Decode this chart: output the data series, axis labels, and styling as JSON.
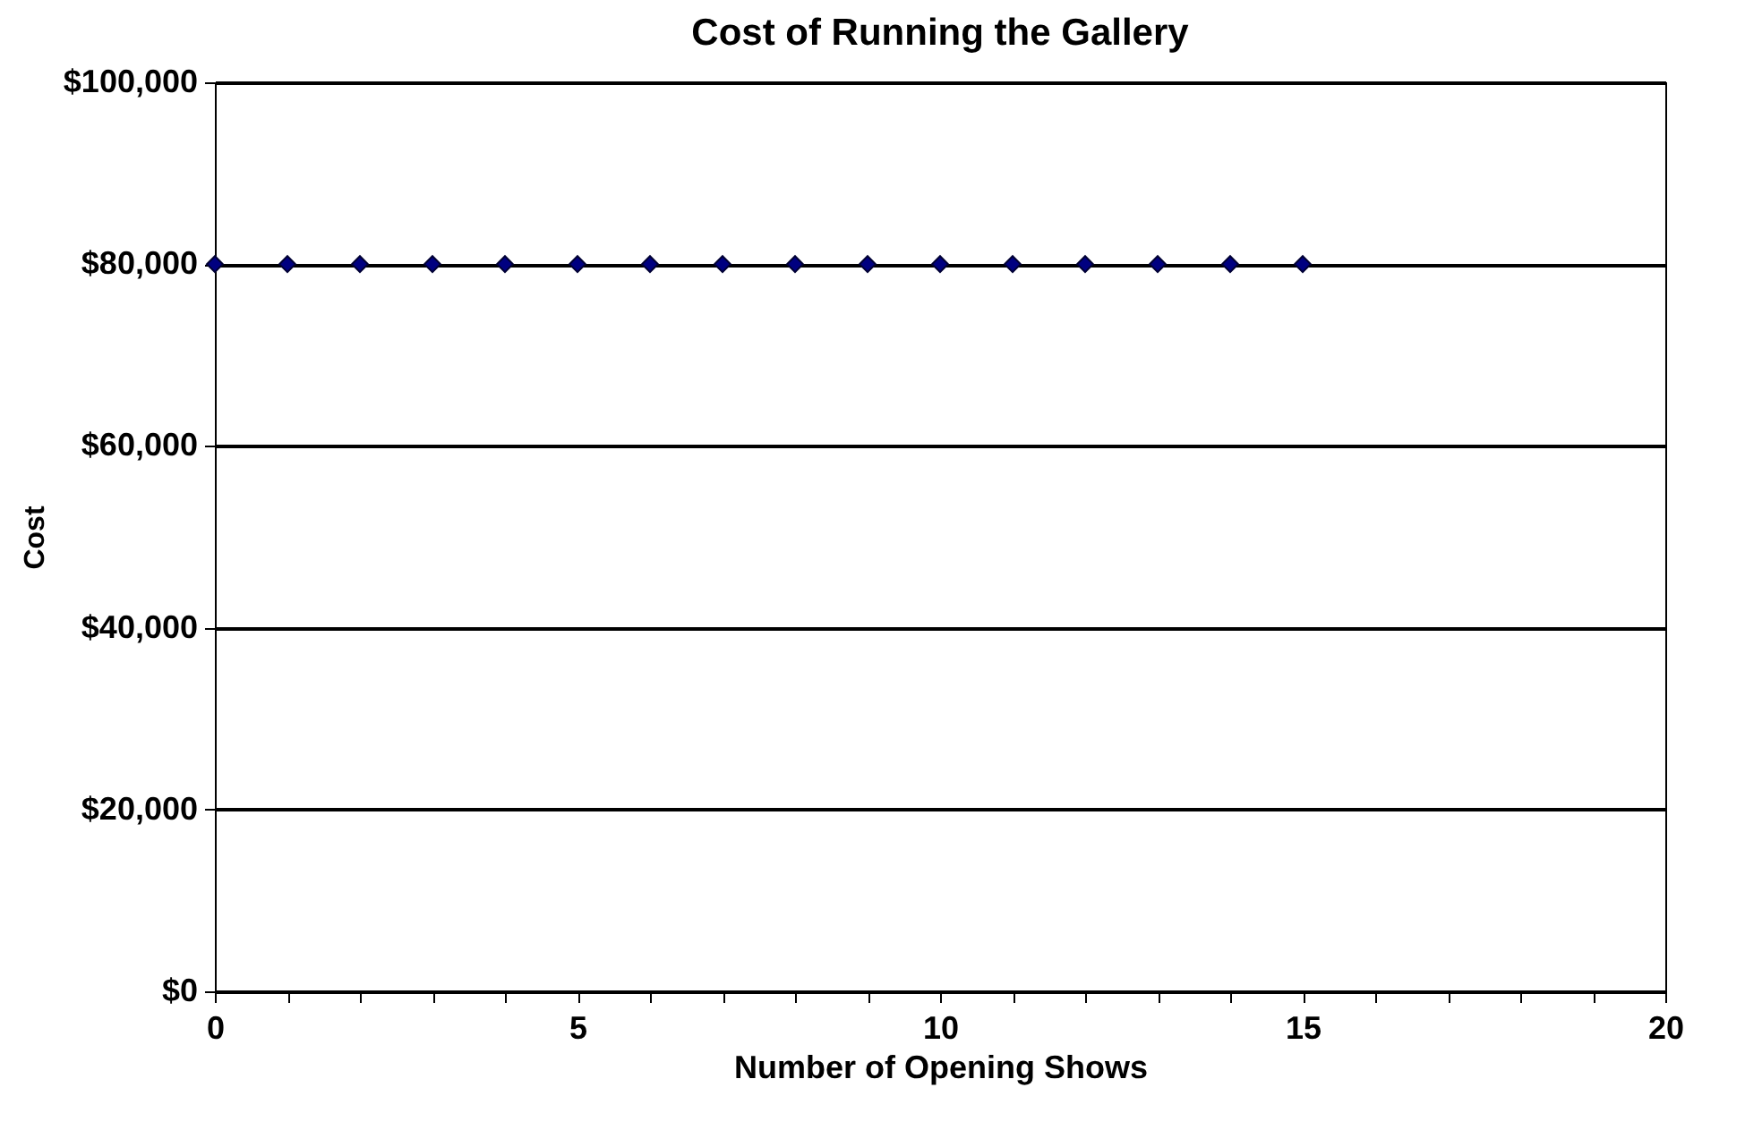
{
  "chart_data": {
    "type": "scatter",
    "title": "Cost of Running the Gallery",
    "xlabel": "Number of Opening Shows",
    "ylabel": "Cost",
    "x": [
      0,
      1,
      2,
      3,
      4,
      5,
      6,
      7,
      8,
      9,
      10,
      11,
      12,
      13,
      14,
      15
    ],
    "series": [
      {
        "color": "#000080",
        "values": [
          80000,
          80000,
          80000,
          80000,
          80000,
          80000,
          80000,
          80000,
          80000,
          80000,
          80000,
          80000,
          80000,
          80000,
          80000,
          80000
        ]
      }
    ],
    "xlim": [
      0,
      20
    ],
    "xticks": [
      0,
      {
        "value": 1,
        "label": null
      },
      {
        "value": 2,
        "label": null
      },
      {
        "value": 3,
        "label": null
      },
      {
        "value": 4,
        "label": null
      },
      5,
      {
        "value": 6,
        "label": null
      },
      {
        "value": 7,
        "label": null
      },
      {
        "value": 8,
        "label": null
      },
      {
        "value": 9,
        "label": null
      },
      10,
      {
        "value": 11,
        "label": null
      },
      {
        "value": 12,
        "label": null
      },
      {
        "value": 13,
        "label": null
      },
      {
        "value": 14,
        "label": null
      },
      15,
      {
        "value": 16,
        "label": null
      },
      {
        "value": 17,
        "label": null
      },
      {
        "value": 18,
        "label": null
      },
      {
        "value": 19,
        "label": null
      },
      20
    ],
    "ylim": [
      0,
      100000
    ],
    "yticks": [
      {
        "value": 0,
        "label": "$0"
      },
      {
        "value": 20000,
        "label": "$20,000"
      },
      {
        "value": 40000,
        "label": "$40,000"
      },
      {
        "value": 60000,
        "label": "$60,000"
      },
      {
        "value": 80000,
        "label": "$80,000"
      },
      {
        "value": 100000,
        "label": "$100,000"
      }
    ],
    "grid": "y",
    "marker": "diamond"
  }
}
